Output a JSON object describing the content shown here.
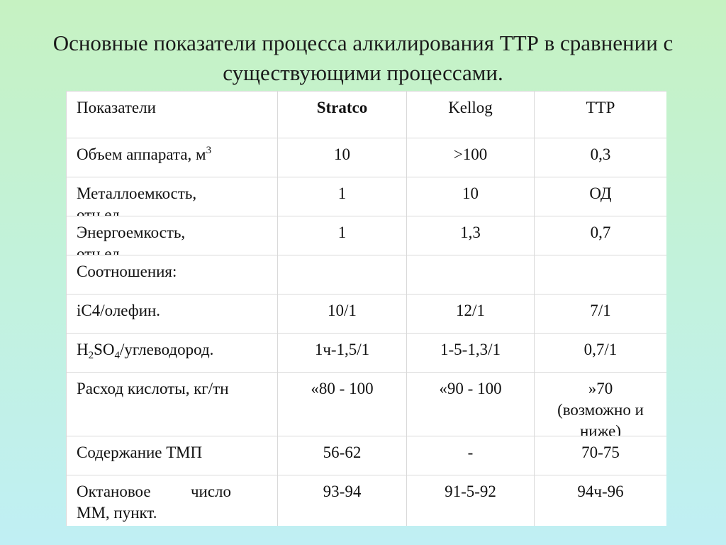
{
  "title": {
    "line1": "Основные показатели процесса алкилирования ТТР в сравнении с",
    "line2": "существующими процессами."
  },
  "table": {
    "header": {
      "label": "Показатели",
      "stratco": "Stratco",
      "kellog": "Kellog",
      "ttr": "ТТР"
    },
    "rows": [
      {
        "label": "Объем аппарата, м",
        "label_sup": "3",
        "stratco": "10",
        "kellog": ">100",
        "ttr": "0,3"
      },
      {
        "label": "Металлоемкость,",
        "label_cut": "отн.ед.",
        "stratco": "1",
        "kellog": "10",
        "ttr": "ОД"
      },
      {
        "label": "Энергоемкость,",
        "label_cut": "отн.ед.",
        "stratco": "1",
        "kellog": "1,3",
        "ttr": "0,7"
      },
      {
        "label": "Соотношения:",
        "stratco": "",
        "kellog": "",
        "ttr": ""
      },
      {
        "label": "iC4/олефин.",
        "stratco": "10/1",
        "kellog": "12/1",
        "ttr": "7/1"
      },
      {
        "label_pre": "H",
        "label_sub1": "2",
        "label_mid": "SO",
        "label_sub2": "4",
        "label_post": "/углеводород.",
        "stratco": "1ч-1,5/1",
        "kellog": "1-5-1,3/1",
        "ttr": "0,7/1"
      },
      {
        "label": "Расход кислоты, кг/тн",
        "stratco": "«80 - 100",
        "kellog": "«90 - 100",
        "ttr": "»70",
        "ttr_line2": "(возможно и",
        "ttr_line3": "ниже)"
      },
      {
        "label": "Содержание ТМП",
        "stratco": "56-62",
        "kellog": "-",
        "ttr": "70-75"
      },
      {
        "label_w1": "Октановое",
        "label_w2": "число",
        "label_line2": "ММ, пункт.",
        "stratco": "93-94",
        "kellog": "91-5-92",
        "ttr": "94ч-96"
      }
    ]
  }
}
